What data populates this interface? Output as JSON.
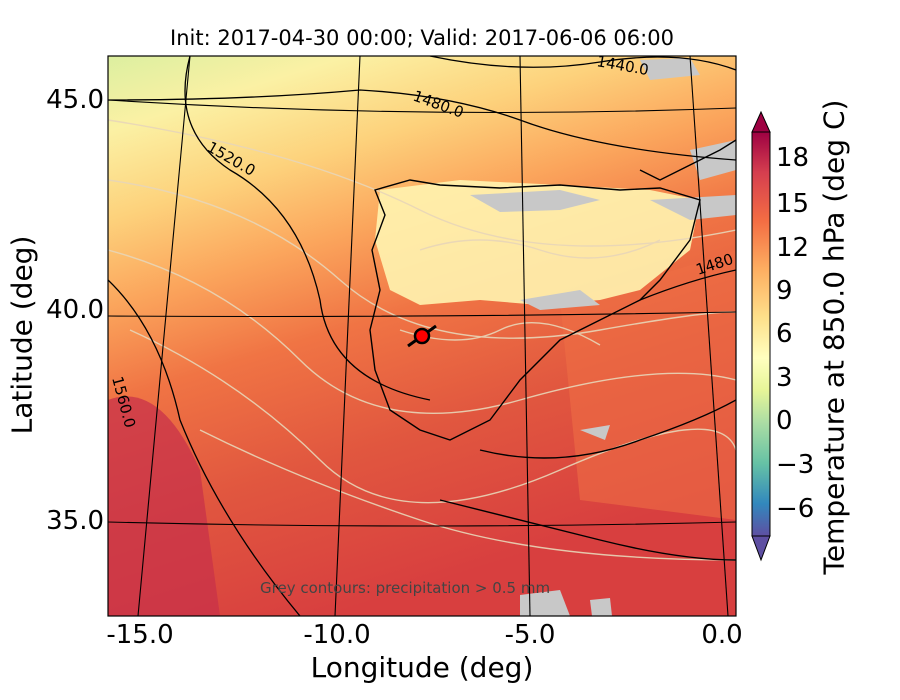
{
  "title": "Init: 2017-04-30 00:00; Valid: 2017-06-06 06:00",
  "xlabel": "Longitude (deg)",
  "ylabel": "Latitude (deg)",
  "x_ticks": [
    "-15.0",
    "-10.0",
    "-5.0",
    "0.0"
  ],
  "y_ticks": [
    "45.0",
    "40.0",
    "35.0"
  ],
  "colorbar": {
    "label": "Temperature at 850.0 hPa (deg C)",
    "ticks": [
      "18",
      "15",
      "12",
      "9",
      "6",
      "3",
      "0",
      "−3",
      "−6"
    ]
  },
  "contour_labels": [
    "1440.0",
    "1480.0",
    "1520.0",
    "1560.0",
    "1480"
  ],
  "note": "Grey contours: precipitation > 0.5 mm",
  "marker": {
    "lon": -7.7,
    "lat": 39.3,
    "color": "#ff0000"
  }
}
